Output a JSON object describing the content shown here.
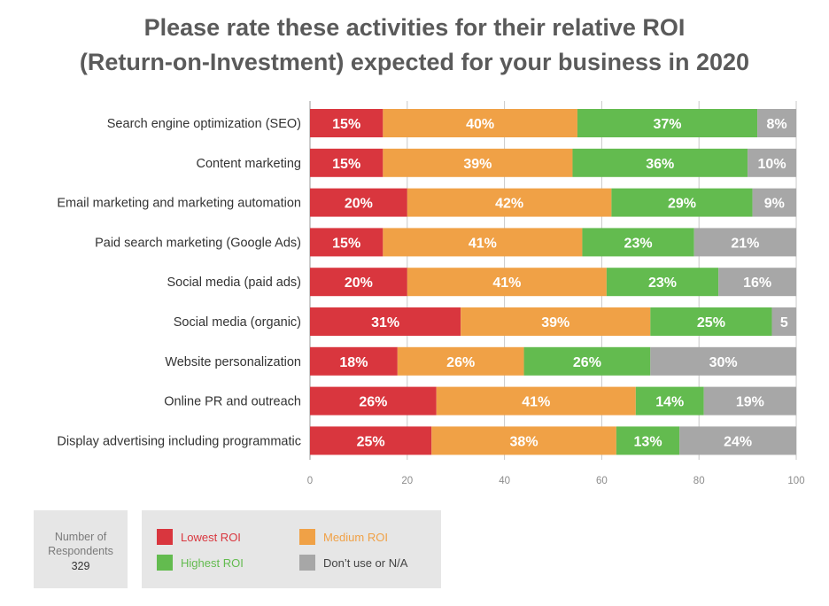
{
  "title_lines": [
    "Please rate these activities for their relative ROI",
    "(Return-on-Investment) expected for your business in 2020"
  ],
  "respondents": {
    "label_lines": [
      "Number of",
      "Respondents"
    ],
    "count": "329"
  },
  "legend": [
    {
      "label": "Lowest ROI",
      "color": "#d9363e",
      "text_color": "#d9363e"
    },
    {
      "label": "Medium ROI",
      "color": "#f0a146",
      "text_color": "#f0a146"
    },
    {
      "label": "Highest ROI",
      "color": "#63bb4f",
      "text_color": "#63bb4f"
    },
    {
      "label": "Don’t use or N/A",
      "color": "#a7a7a7",
      "text_color": "#444444"
    }
  ],
  "chart_data": {
    "type": "bar",
    "orientation": "horizontal",
    "stacked": true,
    "title": "Please rate these activities for their relative ROI (Return-on-Investment) expected for your business in 2020",
    "xlim": [
      0,
      100
    ],
    "x_ticks": [
      0,
      20,
      40,
      60,
      80,
      100
    ],
    "grid": "vertical",
    "legend_position": "bottom",
    "categories": [
      "Search engine optimization (SEO)",
      "Content marketing",
      "Email marketing and marketing automation",
      "Paid search marketing (Google Ads)",
      "Social media (paid ads)",
      "Social media (organic)",
      "Website personalization",
      "Online PR and outreach",
      "Display advertising including programmatic"
    ],
    "series": [
      {
        "name": "Lowest ROI",
        "color": "#d9363e",
        "values": [
          15,
          15,
          20,
          15,
          20,
          31,
          18,
          26,
          25
        ],
        "labels": [
          "15%",
          "15%",
          "20%",
          "15%",
          "20%",
          "31%",
          "18%",
          "26%",
          "25%"
        ]
      },
      {
        "name": "Medium ROI",
        "color": "#f0a146",
        "values": [
          40,
          39,
          42,
          41,
          41,
          39,
          26,
          41,
          38
        ],
        "labels": [
          "40%",
          "39%",
          "42%",
          "41%",
          "41%",
          "39%",
          "26%",
          "41%",
          "38%"
        ]
      },
      {
        "name": "Highest ROI",
        "color": "#63bb4f",
        "values": [
          37,
          36,
          29,
          23,
          23,
          25,
          26,
          14,
          13
        ],
        "labels": [
          "37%",
          "36%",
          "29%",
          "23%",
          "23%",
          "25%",
          "26%",
          "14%",
          "13%"
        ]
      },
      {
        "name": "Don’t use or N/A",
        "color": "#a7a7a7",
        "values": [
          8,
          10,
          9,
          21,
          16,
          5,
          30,
          19,
          24
        ],
        "labels": [
          "8%",
          "10%",
          "9%",
          "21%",
          "16%",
          "5",
          "30%",
          "19%",
          "24%"
        ]
      }
    ]
  }
}
